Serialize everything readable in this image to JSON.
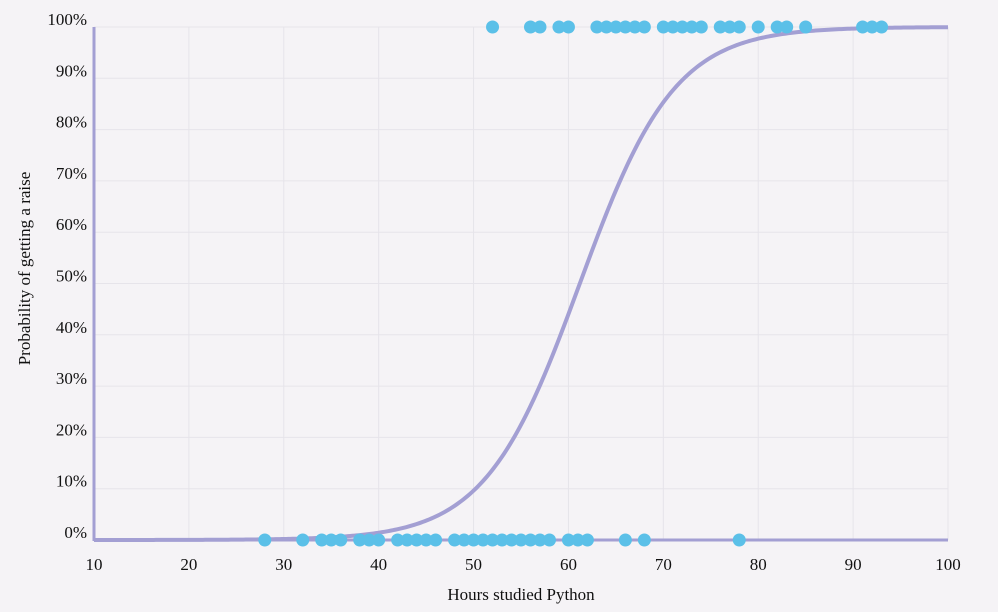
{
  "chart_data": {
    "type": "scatter",
    "title": "",
    "xlabel": "Hours studied Python",
    "ylabel": "Probability of getting a raise",
    "xlim": [
      10,
      100
    ],
    "ylim": [
      0,
      1
    ],
    "x_ticks": [
      "10",
      "20",
      "30",
      "40",
      "50",
      "60",
      "70",
      "80",
      "90",
      "100"
    ],
    "y_ticks": [
      "0%",
      "10%",
      "20%",
      "30%",
      "40%",
      "50%",
      "60%",
      "70%",
      "80%",
      "90%",
      "100%"
    ],
    "grid": true,
    "colors": {
      "points": "#5bc0e8",
      "curve": "#a39fd3",
      "axis": "#a39fd3",
      "grid": "#e6e4ea"
    },
    "points_no_raise": {
      "y": 0,
      "x": [
        28,
        32,
        34,
        35,
        36,
        38,
        39,
        40,
        42,
        43,
        44,
        45,
        46,
        48,
        49,
        50,
        51,
        52,
        53,
        54,
        55,
        56,
        57,
        58,
        60,
        61,
        62,
        66,
        68,
        78
      ]
    },
    "points_raise": {
      "y": 1,
      "x": [
        52,
        56,
        57,
        59,
        60,
        63,
        64,
        65,
        66,
        67,
        68,
        70,
        71,
        72,
        73,
        74,
        76,
        77,
        78,
        80,
        82,
        83,
        85,
        91,
        92,
        93
      ]
    },
    "logistic_curve": {
      "midpoint": 61.2,
      "steepness": 0.2
    }
  }
}
